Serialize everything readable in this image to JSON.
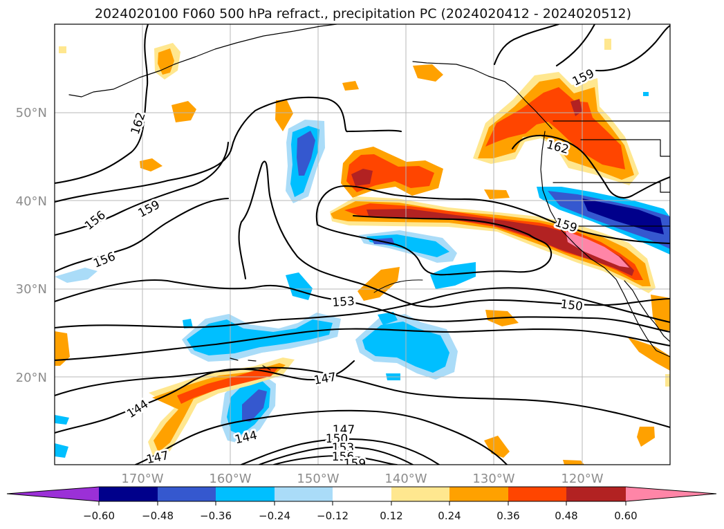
{
  "title": "2024020100 F060 500 hPa refract., precipitation PC (2024020412 - 2024020512)",
  "lat_labels": [
    "50°N",
    "40°N",
    "30°N",
    "20°N"
  ],
  "lon_labels": [
    "170°W",
    "160°W",
    "150°W",
    "140°W",
    "130°W",
    "120°W"
  ],
  "contour_labels": [
    {
      "text": "162"
    },
    {
      "text": "159"
    },
    {
      "text": "156"
    },
    {
      "text": "156"
    },
    {
      "text": "159"
    },
    {
      "text": "162"
    },
    {
      "text": "159"
    },
    {
      "text": "153"
    },
    {
      "text": "150"
    },
    {
      "text": "147"
    },
    {
      "text": "144"
    },
    {
      "text": "144"
    },
    {
      "text": "147"
    },
    {
      "text": "147"
    },
    {
      "text": "150"
    },
    {
      "text": "153"
    },
    {
      "text": "156"
    },
    {
      "text": "159"
    }
  ],
  "colorbar": {
    "tick_labels": [
      "−0.60",
      "−0.48",
      "−0.36",
      "−0.24",
      "−0.12",
      "0.12",
      "0.24",
      "0.36",
      "0.48",
      "0.60"
    ],
    "colors": [
      "#9b30d7",
      "#00008b",
      "#3558cf",
      "#00bfff",
      "#aadcf8",
      "#ffffff",
      "#ffe78f",
      "#ffa100",
      "#ff4500",
      "#b22222",
      "#ff85a7"
    ]
  }
}
